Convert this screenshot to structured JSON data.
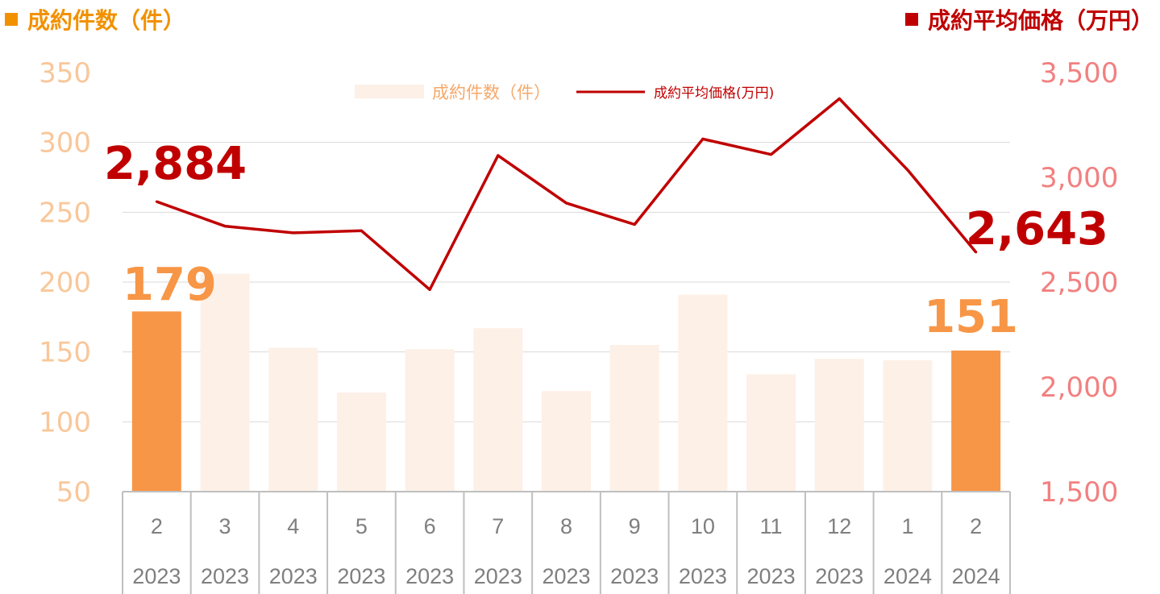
{
  "headers": {
    "left": "成約件数（件）",
    "right": "成約平均価格（万円）"
  },
  "legend": {
    "bars": "成約件数（件）",
    "line": "成約平均価格(万円)"
  },
  "colors": {
    "bar_highlight": "#F79646",
    "bar_faded": "#FDF0E7",
    "line": "#C00000",
    "left_axis_text": "#F9C79A",
    "right_axis_text": "#F28080",
    "left_header": "#F29100",
    "right_header": "#C00000",
    "legend_bar_text": "#F5A86A",
    "x_axis_text": "#7F7F7F"
  },
  "chart_data": {
    "type": "bar",
    "categories": [
      {
        "month": "2",
        "year": "2023"
      },
      {
        "month": "3",
        "year": "2023"
      },
      {
        "month": "4",
        "year": "2023"
      },
      {
        "month": "5",
        "year": "2023"
      },
      {
        "month": "6",
        "year": "2023"
      },
      {
        "month": "7",
        "year": "2023"
      },
      {
        "month": "8",
        "year": "2023"
      },
      {
        "month": "9",
        "year": "2023"
      },
      {
        "month": "10",
        "year": "2023"
      },
      {
        "month": "11",
        "year": "2023"
      },
      {
        "month": "12",
        "year": "2023"
      },
      {
        "month": "1",
        "year": "2024"
      },
      {
        "month": "2",
        "year": "2024"
      }
    ],
    "series": [
      {
        "name": "成約件数（件）",
        "type": "bar",
        "axis": "left",
        "values": [
          179,
          206,
          153,
          121,
          152,
          167,
          122,
          155,
          191,
          134,
          145,
          144,
          151
        ],
        "highlight": [
          true,
          false,
          false,
          false,
          false,
          false,
          false,
          false,
          false,
          false,
          false,
          false,
          true
        ]
      },
      {
        "name": "成約平均価格(万円)",
        "type": "line",
        "axis": "right",
        "values": [
          2884,
          2767,
          2735,
          2745,
          2464,
          3104,
          2877,
          2775,
          3183,
          3109,
          3375,
          3035,
          2643
        ]
      }
    ],
    "y_left": {
      "min": 50,
      "max": 350,
      "ticks": [
        "50",
        "100",
        "150",
        "200",
        "250",
        "300",
        "350"
      ]
    },
    "y_right": {
      "min": 1500,
      "max": 3500,
      "ticks": [
        "1,500",
        "2,000",
        "2,500",
        "3,000",
        "3,500"
      ]
    },
    "annotations": [
      {
        "text": "2,884",
        "series": "line",
        "index": 0
      },
      {
        "text": "2,643",
        "series": "line",
        "index": 12
      },
      {
        "text": "179",
        "series": "bar",
        "index": 0
      },
      {
        "text": "151",
        "series": "bar",
        "index": 12
      }
    ],
    "grid": true,
    "legend_position": "top-center"
  }
}
